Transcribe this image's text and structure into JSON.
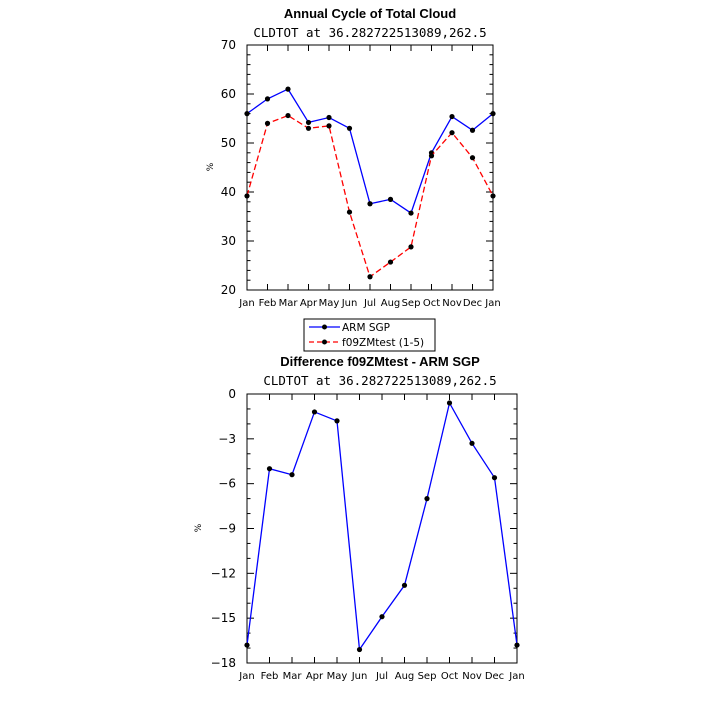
{
  "chart_data": [
    {
      "type": "line",
      "title": "Annual Cycle of Total Cloud",
      "subtitle": "CLDTOT at 36.282722513089,262.5",
      "xlabel": "",
      "ylabel": "%",
      "categories": [
        "Jan",
        "Feb",
        "Mar",
        "Apr",
        "May",
        "Jun",
        "Jul",
        "Aug",
        "Sep",
        "Oct",
        "Nov",
        "Dec",
        "Jan"
      ],
      "yticks": [
        20,
        30,
        40,
        50,
        60,
        70
      ],
      "ylim": [
        20,
        70
      ],
      "grid": false,
      "legend_position": "bottom",
      "series": [
        {
          "name": "ARM SGP",
          "color": "#0000ff",
          "dash": "solid",
          "values": [
            56.0,
            59.0,
            61.0,
            54.2,
            55.2,
            53.0,
            37.6,
            38.5,
            35.7,
            48.0,
            55.4,
            52.6,
            56.0
          ]
        },
        {
          "name": "f09ZMtest (1-5)",
          "color": "#ff0000",
          "dash": "dashed",
          "values": [
            39.2,
            54.0,
            55.6,
            53.0,
            53.5,
            35.9,
            22.7,
            25.7,
            28.8,
            47.4,
            52.1,
            47.0,
            39.2
          ]
        }
      ]
    },
    {
      "type": "line",
      "title": "Difference f09ZMtest - ARM SGP",
      "subtitle": "CLDTOT at 36.282722513089,262.5",
      "xlabel": "",
      "ylabel": "%",
      "categories": [
        "Jan",
        "Feb",
        "Mar",
        "Apr",
        "May",
        "Jun",
        "Jul",
        "Aug",
        "Sep",
        "Oct",
        "Nov",
        "Dec",
        "Jan"
      ],
      "yticks": [
        0,
        -3,
        -6,
        -9,
        -12,
        -15,
        -18
      ],
      "ylim": [
        -18,
        0
      ],
      "grid": false,
      "series": [
        {
          "color": "#0000ff",
          "dash": "solid",
          "values": [
            -16.8,
            -5.0,
            -5.4,
            -1.2,
            -1.8,
            -17.1,
            -14.9,
            -12.8,
            -7.0,
            -0.6,
            -3.3,
            -5.6,
            -16.8
          ]
        }
      ]
    }
  ]
}
